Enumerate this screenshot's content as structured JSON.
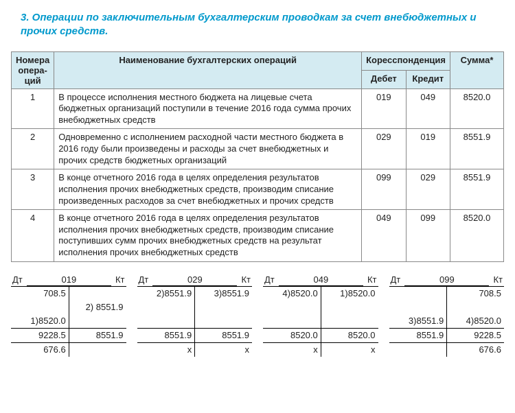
{
  "title": "3. Операции по заключительным бухгалтерским проводкам за счет внебюджетных и прочих средств.",
  "mainTable": {
    "headers": {
      "num": "Номера опера-ций",
      "name": "Наименование бухгалтерских операций",
      "corr": "Коресспонденция",
      "debit": "Дебет",
      "credit": "Кредит",
      "sum": "Сумма*"
    },
    "rows": [
      {
        "num": "1",
        "desc": "В процессе исполнения местного бюджета на лицевые счета бюджетных организаций поступили в течение 2016 года сумма прочих внебюджетных средств",
        "debit": "019",
        "credit": "049",
        "sum": "8520.0"
      },
      {
        "num": "2",
        "desc": " Одновременно с исполнением расходной части местного бюджета в 2016 году были произведены и расходы за счет внебюджетных и прочих средств бюджетных организаций",
        "debit": "029",
        "credit": "019",
        "sum": "8551.9"
      },
      {
        "num": "3",
        "desc": "В конце отчетного 2016 года в целях определения результатов исполнения прочих внебюджетных средств, производим списание произведенных расходов за счет внебюджетных и прочих средств",
        "debit": "099",
        "credit": "029",
        "sum": "8551.9"
      },
      {
        "num": "4",
        "desc": "В конце отчетного 2016 года в целях определения результатов исполнения прочих внебюджетных средств, производим списание поступивших сумм прочих внебюджетных средств на результат исполнения прочих внебюджетных средств",
        "debit": "049",
        "credit": "099",
        "sum": "8520.0"
      }
    ]
  },
  "tAccts": [
    {
      "dt": "Дт",
      "kt": "Кт",
      "acct": "019",
      "rows": [
        {
          "l": "708.5",
          "r": ""
        },
        {
          "l": "",
          "r": "2) 8551.9"
        },
        {
          "l": "1)8520.0",
          "r": ""
        },
        {
          "l": "9228.5",
          "r": "8551.9",
          "sep": true
        },
        {
          "l": "676.6",
          "r": "",
          "sep": true
        }
      ]
    },
    {
      "dt": "Дт",
      "kt": "Кт",
      "acct": "029",
      "rows": [
        {
          "l": "2)8551.9",
          "r": "3)8551.9"
        },
        {
          "l": "",
          "r": ""
        },
        {
          "l": "",
          "r": ""
        },
        {
          "l": "8551.9",
          "r": "8551.9",
          "sep": true
        },
        {
          "l": "x",
          "r": "x",
          "sep": true
        }
      ]
    },
    {
      "dt": "Дт",
      "kt": "Кт",
      "acct": "049",
      "rows": [
        {
          "l": "4)8520.0",
          "r": "1)8520.0"
        },
        {
          "l": "",
          "r": ""
        },
        {
          "l": "",
          "r": ""
        },
        {
          "l": "8520.0",
          "r": "8520.0",
          "sep": true
        },
        {
          "l": "x",
          "r": "x",
          "sep": true
        }
      ]
    },
    {
      "dt": "Дт",
      "kt": "Кт",
      "acct": "099",
      "rows": [
        {
          "l": "",
          "r": "708.5"
        },
        {
          "l": "",
          "r": ""
        },
        {
          "l": "3)8551.9",
          "r": "4)8520.0"
        },
        {
          "l": "8551.9",
          "r": "9228.5",
          "sep": true
        },
        {
          "l": "",
          "r": "676.6",
          "sep": true
        }
      ]
    }
  ]
}
